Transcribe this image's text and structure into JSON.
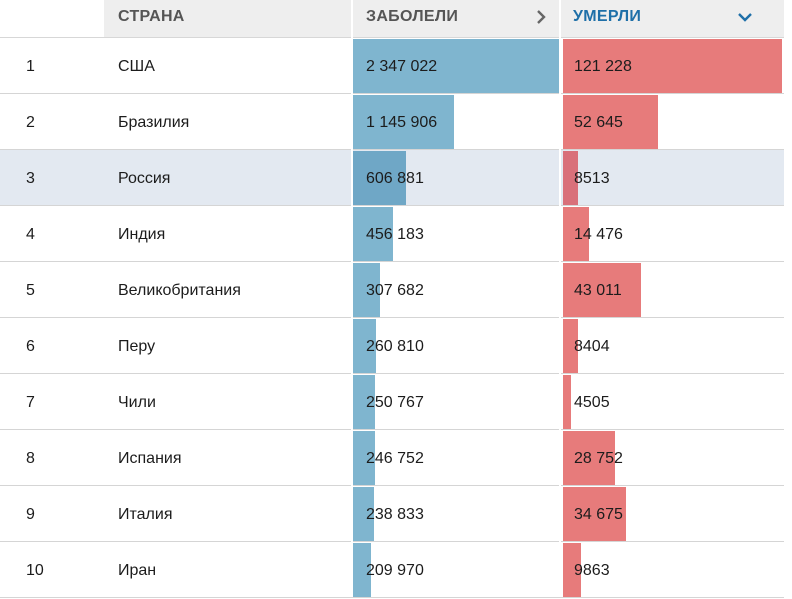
{
  "header": {
    "rank_label": "",
    "country_label": "СТРАНА",
    "cases_label": "ЗАБОЛЕЛИ",
    "deaths_label": "УМЕРЛИ",
    "cases_icon": "chevron-right-icon",
    "deaths_icon": "chevron-down-icon",
    "active_color": "#1e6fa8"
  },
  "colors": {
    "cases_bar": "#7fb5cf",
    "deaths_bar": "#e77b7b",
    "highlight_row": "#e3e9f1"
  },
  "highlighted_rank": "3",
  "rows": [
    {
      "rank": "1",
      "country": "США",
      "cases": "2 347 022",
      "deaths": "121 228",
      "cases_num": 2347022,
      "deaths_num": 121228
    },
    {
      "rank": "2",
      "country": "Бразилия",
      "cases": "1 145 906",
      "deaths": "52 645",
      "cases_num": 1145906,
      "deaths_num": 52645
    },
    {
      "rank": "3",
      "country": "Россия",
      "cases": "606 881",
      "deaths": "8513",
      "cases_num": 606881,
      "deaths_num": 8513
    },
    {
      "rank": "4",
      "country": "Индия",
      "cases": "456 183",
      "deaths": "14 476",
      "cases_num": 456183,
      "deaths_num": 14476
    },
    {
      "rank": "5",
      "country": "Великобритания",
      "cases": "307 682",
      "deaths": "43 011",
      "cases_num": 307682,
      "deaths_num": 43011
    },
    {
      "rank": "6",
      "country": "Перу",
      "cases": "260 810",
      "deaths": "8404",
      "cases_num": 260810,
      "deaths_num": 8404
    },
    {
      "rank": "7",
      "country": "Чили",
      "cases": "250 767",
      "deaths": "4505",
      "cases_num": 250767,
      "deaths_num": 4505
    },
    {
      "rank": "8",
      "country": "Испания",
      "cases": "246 752",
      "deaths": "28 752",
      "cases_num": 246752,
      "deaths_num": 28752
    },
    {
      "rank": "9",
      "country": "Италия",
      "cases": "238 833",
      "deaths": "34 675",
      "cases_num": 238833,
      "deaths_num": 34675
    },
    {
      "rank": "10",
      "country": "Иран",
      "cases": "209 970",
      "deaths": "9863",
      "cases_num": 209970,
      "deaths_num": 9863
    }
  ]
}
